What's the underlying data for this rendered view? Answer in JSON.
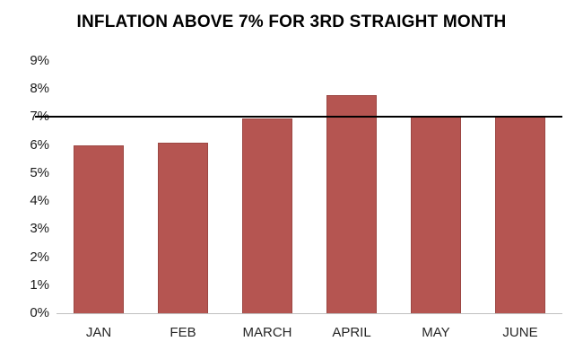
{
  "title": "INFLATION ABOVE 7% FOR 3RD STRAIGHT MONTH",
  "colors": {
    "bar": "#B55551",
    "bar_border": "#9C4743",
    "reference_line": "#000000",
    "baseline": "#C0C0C0",
    "text": "#1a1a1a"
  },
  "chart_data": {
    "type": "bar",
    "title": "INFLATION ABOVE 7% FOR 3RD STRAIGHT MONTH",
    "categories": [
      "JAN",
      "FEB",
      "MARCH",
      "APRIL",
      "MAY",
      "JUNE"
    ],
    "values": [
      6.0,
      6.1,
      6.95,
      7.8,
      7.05,
      7.0
    ],
    "xlabel": "",
    "ylabel": "",
    "ylim": [
      0,
      9
    ],
    "y_ticks": [
      "0%",
      "1%",
      "2%",
      "3%",
      "4%",
      "5%",
      "6%",
      "7%",
      "8%",
      "9%"
    ],
    "reference_line": {
      "value": 7,
      "label": "7%"
    },
    "grid": false,
    "legend": false
  }
}
